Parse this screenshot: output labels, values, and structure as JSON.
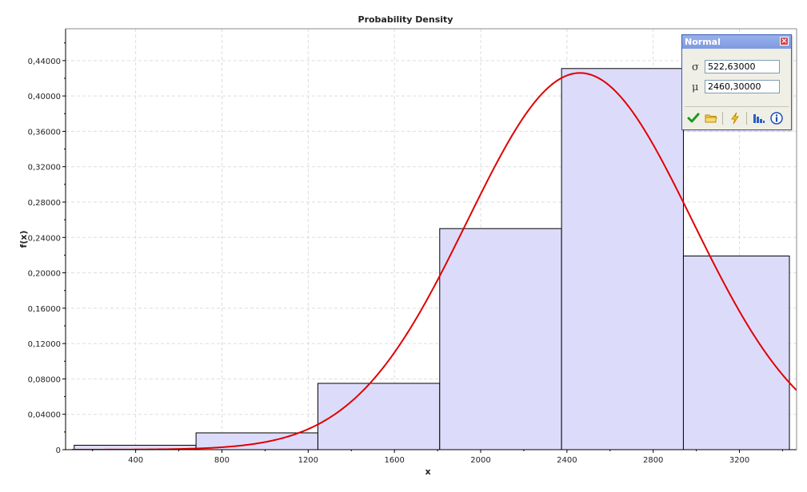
{
  "chart_data": {
    "type": "bar",
    "title": "Probability Density",
    "xlabel": "x",
    "ylabel": "f(x)",
    "xlim": [
      75,
      3465
    ],
    "ylim": [
      0,
      0.476
    ],
    "x_ticks": [
      "400",
      "800",
      "1200",
      "1600",
      "2000",
      "2400",
      "2800",
      "3200"
    ],
    "x_tick_values": [
      400,
      800,
      1200,
      1600,
      2000,
      2400,
      2800,
      3200
    ],
    "y_ticks": [
      "0",
      "0,04000",
      "0,08000",
      "0,12000",
      "0,16000",
      "0,20000",
      "0,24000",
      "0,28000",
      "0,32000",
      "0,36000",
      "0,40000",
      "0,44000"
    ],
    "y_tick_values": [
      0,
      0.04,
      0.08,
      0.12,
      0.16,
      0.2,
      0.24,
      0.28,
      0.32,
      0.36,
      0.4,
      0.44
    ],
    "grid": true,
    "bins": [
      {
        "x0": 115,
        "x1": 680,
        "value": 0.005
      },
      {
        "x0": 680,
        "x1": 1245,
        "value": 0.019
      },
      {
        "x0": 1245,
        "x1": 1810,
        "value": 0.075
      },
      {
        "x0": 1810,
        "x1": 2375,
        "value": 0.25
      },
      {
        "x0": 2375,
        "x1": 2940,
        "value": 0.431
      },
      {
        "x0": 2940,
        "x1": 3505,
        "value": 0.219
      }
    ],
    "curve": {
      "distribution": "normal",
      "sigma": 522.63,
      "mu": 2460.3,
      "peak": 0.426
    },
    "colors": {
      "bar_fill": "#dcdcfa",
      "bar_stroke": "#000000",
      "curve": "#e00000",
      "grid": "#dddddd"
    }
  },
  "dist_window": {
    "title": "Normal",
    "close_label": "×",
    "sigma_symbol": "σ",
    "sigma_value": "522,63000",
    "mu_symbol": "μ",
    "mu_value": "2460,30000",
    "tools": [
      "check-icon",
      "folder-icon",
      "lightning-icon",
      "histogram-icon",
      "info-icon"
    ]
  }
}
